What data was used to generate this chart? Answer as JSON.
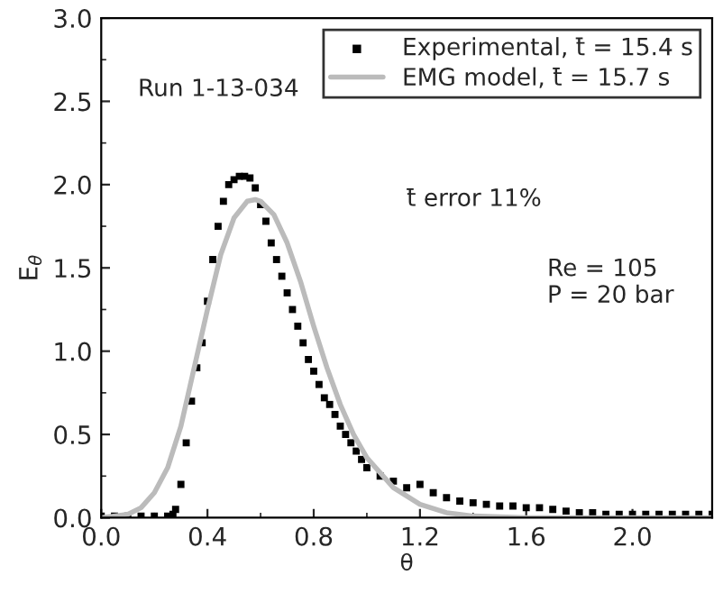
{
  "chart_data": {
    "type": "scatter",
    "xlabel": "θ",
    "ylabel": "E$_{θ}$",
    "xlim": [
      0,
      2.3
    ],
    "xticks": [
      {
        "value": 0,
        "label": "0.0"
      },
      0.4,
      0.8,
      1.2,
      1.6,
      {
        "value": 2,
        "label": "2.0"
      }
    ],
    "ylim": [
      0,
      3.0
    ],
    "yticks": [
      {
        "value": 0,
        "label": "0.0"
      },
      0.5,
      {
        "value": 1,
        "label": "1.0"
      },
      1.5,
      {
        "value": 2,
        "label": "2.0"
      },
      2.5,
      {
        "value": 3,
        "label": "3.0"
      }
    ],
    "grid": false,
    "legend": "top right",
    "annotations": [
      "Run 1-13-034",
      "t̄ error 11%",
      "Re = 105\nP = 20 bar"
    ],
    "series": [
      {
        "name": "Experimental, t̄ = 15.4 s",
        "marker": "square",
        "color": "#000000",
        "x": [
          0.0,
          0.05,
          0.1,
          0.15,
          0.2,
          0.25,
          0.27,
          0.28,
          0.3,
          0.32,
          0.34,
          0.36,
          0.38,
          0.4,
          0.42,
          0.44,
          0.46,
          0.48,
          0.5,
          0.52,
          0.54,
          0.56,
          0.58,
          0.6,
          0.62,
          0.64,
          0.66,
          0.68,
          0.7,
          0.72,
          0.74,
          0.76,
          0.78,
          0.8,
          0.82,
          0.84,
          0.86,
          0.88,
          0.9,
          0.92,
          0.94,
          0.96,
          0.98,
          1.0,
          1.05,
          1.1,
          1.15,
          1.2,
          1.25,
          1.3,
          1.35,
          1.4,
          1.45,
          1.5,
          1.55,
          1.6,
          1.65,
          1.7,
          1.75,
          1.8,
          1.85,
          1.9,
          1.95,
          2.0,
          2.05,
          2.1,
          2.15,
          2.2,
          2.25,
          2.3
        ],
        "values": [
          0.01,
          0.01,
          0.01,
          0.01,
          0.01,
          0.01,
          0.02,
          0.05,
          0.2,
          0.45,
          0.7,
          0.9,
          1.05,
          1.3,
          1.55,
          1.75,
          1.9,
          2.0,
          2.03,
          2.05,
          2.05,
          2.04,
          1.98,
          1.88,
          1.78,
          1.65,
          1.55,
          1.45,
          1.35,
          1.25,
          1.15,
          1.05,
          0.95,
          0.88,
          0.8,
          0.72,
          0.68,
          0.62,
          0.55,
          0.5,
          0.45,
          0.4,
          0.35,
          0.3,
          0.25,
          0.22,
          0.18,
          0.2,
          0.15,
          0.12,
          0.1,
          0.09,
          0.08,
          0.07,
          0.07,
          0.06,
          0.06,
          0.05,
          0.04,
          0.03,
          0.03,
          0.02,
          0.02,
          0.02,
          0.02,
          0.02,
          0.02,
          0.02,
          0.02,
          0.02
        ]
      },
      {
        "name": "EMG model, t̄ = 15.7 s",
        "type": "line",
        "marker": "none",
        "line_style": "solid",
        "color": "#bbbbbb",
        "x": [
          0.0,
          0.1,
          0.15,
          0.2,
          0.25,
          0.3,
          0.35,
          0.4,
          0.45,
          0.5,
          0.55,
          0.58,
          0.6,
          0.65,
          0.7,
          0.75,
          0.8,
          0.85,
          0.9,
          0.95,
          1.0,
          1.1,
          1.2,
          1.3,
          1.4,
          1.6,
          2.3
        ],
        "values": [
          0.0,
          0.02,
          0.06,
          0.15,
          0.3,
          0.55,
          0.9,
          1.25,
          1.58,
          1.8,
          1.9,
          1.91,
          1.9,
          1.82,
          1.65,
          1.42,
          1.15,
          0.9,
          0.68,
          0.5,
          0.36,
          0.18,
          0.08,
          0.03,
          0.01,
          0.0,
          0.0
        ]
      }
    ]
  }
}
